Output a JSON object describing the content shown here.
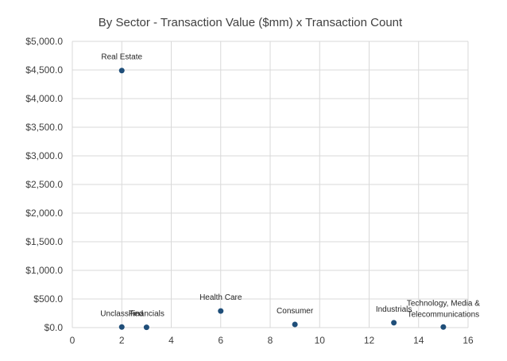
{
  "chart_data": {
    "type": "scatter",
    "title": "By Sector - Transaction Value ($mm) x Transaction Count",
    "xlabel": "",
    "ylabel": "",
    "xlim": [
      0,
      16
    ],
    "ylim": [
      0,
      5000
    ],
    "x_ticks": [
      "0",
      "2",
      "4",
      "6",
      "8",
      "10",
      "12",
      "14",
      "16"
    ],
    "y_ticks": [
      "$0.0",
      "$500.0",
      "$1,000.0",
      "$1,500.0",
      "$2,000.0",
      "$2,500.0",
      "$3,000.0",
      "$3,500.0",
      "$4,000.0",
      "$4,500.0",
      "$5,000.0"
    ],
    "grid": true,
    "legend": "none",
    "marker_color": "#1f4e79",
    "points": [
      {
        "label": "Real Estate",
        "x": 2,
        "y": 4490
      },
      {
        "label": "Unclassified",
        "x": 2,
        "y": 10
      },
      {
        "label": "Financials",
        "x": 3,
        "y": 5
      },
      {
        "label": "Health Care",
        "x": 6,
        "y": 290
      },
      {
        "label": "Consumer",
        "x": 9,
        "y": 55
      },
      {
        "label": "Industrials",
        "x": 13,
        "y": 85
      },
      {
        "label": "Technology, Media & Telecommunications",
        "x": 15,
        "y": 10
      }
    ]
  }
}
